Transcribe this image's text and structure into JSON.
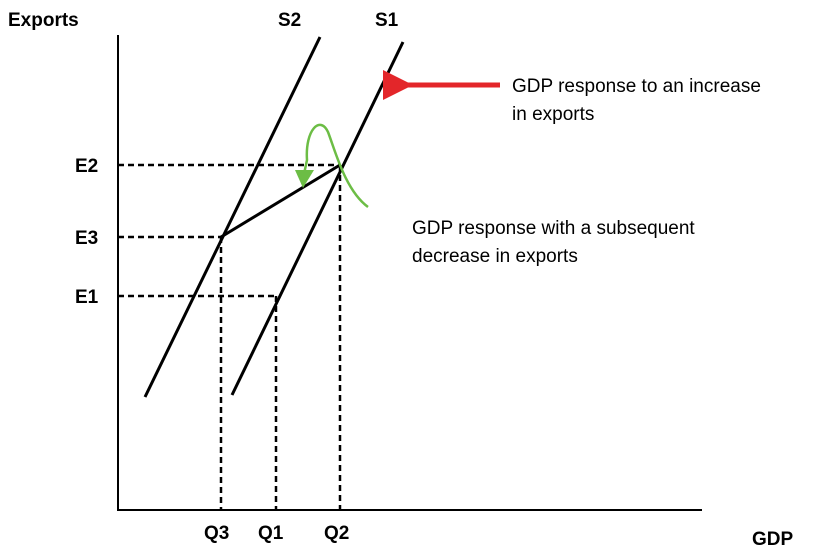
{
  "axes": {
    "y_label": "Exports",
    "x_label": "GDP"
  },
  "curves": {
    "s2": "S2",
    "s1": "S1"
  },
  "exports_levels": {
    "e2": "E2",
    "e3": "E3",
    "e1": "E1"
  },
  "gdp_levels": {
    "q3": "Q3",
    "q1": "Q1",
    "q2": "Q2"
  },
  "annotations": {
    "increase": [
      "GDP response to an increase",
      "in exports"
    ],
    "decrease": [
      "GDP response with a subsequent",
      "decrease in exports"
    ]
  }
}
